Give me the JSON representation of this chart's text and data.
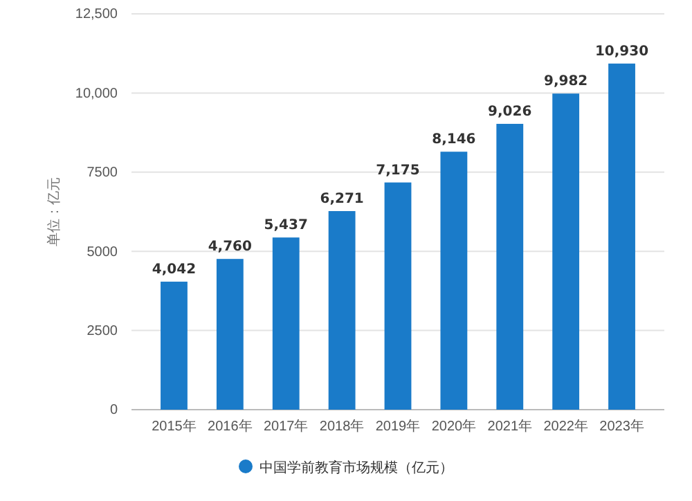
{
  "chart_data": {
    "type": "bar",
    "ylabel": "单位：亿元",
    "categories": [
      "2015年",
      "2016年",
      "2017年",
      "2018年",
      "2019年",
      "2020年",
      "2021年",
      "2022年",
      "2023年"
    ],
    "series": [
      {
        "name": "中国学前教育市场规模（亿元）",
        "color": "#1a7bc9",
        "values": [
          4042,
          4760,
          5437,
          6271,
          7175,
          8146,
          9026,
          9982,
          10930
        ]
      }
    ],
    "value_labels": [
      "4,042",
      "4,760",
      "5,437",
      "6,271",
      "7,175",
      "8,146",
      "9,026",
      "9,982",
      "10,930"
    ],
    "ylim": [
      0,
      12500
    ],
    "yticks": [
      0,
      2500,
      5000,
      7500,
      {
        "value": 10000,
        "label": "10,000"
      },
      {
        "value": 12500,
        "label": "12,500"
      }
    ],
    "grid": "y",
    "legend": "bottom"
  }
}
